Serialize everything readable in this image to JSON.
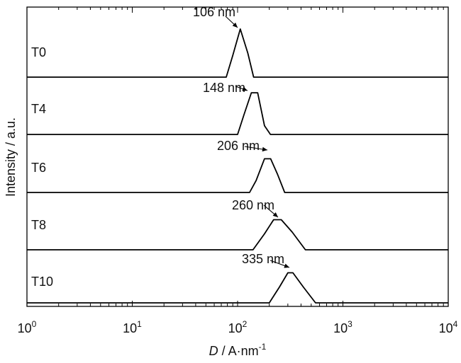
{
  "chart_data": {
    "type": "line",
    "title": "",
    "xlabel": {
      "italic": "D",
      "rest": " / A·nm",
      "sup": "-1"
    },
    "ylabel": "Intensity / a.u.",
    "x_scale": "log",
    "xlim": [
      1,
      10000
    ],
    "x_ticks": [
      {
        "value": 1,
        "base": "10",
        "exp": "0"
      },
      {
        "value": 10,
        "base": "10",
        "exp": "1"
      },
      {
        "value": 100,
        "base": "10",
        "exp": "2"
      },
      {
        "value": 1000,
        "base": "10",
        "exp": "3"
      },
      {
        "value": 10000,
        "base": "10",
        "exp": "4"
      }
    ],
    "grid": false,
    "legend": "none",
    "line_color": "#000000",
    "series": [
      {
        "name": "T0",
        "peak_label": "106 nm",
        "points": [
          [
            1,
            0
          ],
          [
            78,
            0
          ],
          [
            90,
            0.45
          ],
          [
            106,
            1.0
          ],
          [
            125,
            0.5
          ],
          [
            142,
            0
          ],
          [
            10000,
            0
          ]
        ]
      },
      {
        "name": "T4",
        "peak_label": "148 nm",
        "points": [
          [
            1,
            0
          ],
          [
            100,
            0
          ],
          [
            115,
            0.45
          ],
          [
            135,
            0.95
          ],
          [
            155,
            0.95
          ],
          [
            180,
            0.2
          ],
          [
            205,
            0
          ],
          [
            10000,
            0
          ]
        ]
      },
      {
        "name": "T6",
        "peak_label": "206 nm",
        "points": [
          [
            1,
            0
          ],
          [
            130,
            0
          ],
          [
            150,
            0.3
          ],
          [
            180,
            0.85
          ],
          [
            206,
            0.85
          ],
          [
            240,
            0.45
          ],
          [
            280,
            0
          ],
          [
            10000,
            0
          ]
        ]
      },
      {
        "name": "T8",
        "peak_label": "260 nm",
        "points": [
          [
            1,
            0
          ],
          [
            140,
            0
          ],
          [
            180,
            0.45
          ],
          [
            220,
            0.85
          ],
          [
            260,
            0.85
          ],
          [
            330,
            0.5
          ],
          [
            440,
            0
          ],
          [
            10000,
            0
          ]
        ]
      },
      {
        "name": "T10",
        "peak_label": "335 nm",
        "points": [
          [
            1,
            0
          ],
          [
            200,
            0
          ],
          [
            250,
            0.45
          ],
          [
            300,
            0.85
          ],
          [
            335,
            0.85
          ],
          [
            420,
            0.45
          ],
          [
            550,
            0
          ],
          [
            10000,
            0
          ]
        ]
      }
    ]
  }
}
